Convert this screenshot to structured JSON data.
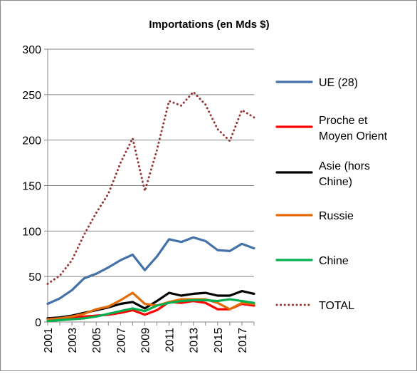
{
  "chart_data": {
    "type": "line",
    "title": "Importations  (en Mds $)",
    "xlabel": "",
    "ylabel": "",
    "ylim": [
      0,
      300
    ],
    "yticks": [
      "0",
      "50",
      "100",
      "150",
      "200",
      "250",
      "300"
    ],
    "x": [
      2001,
      2002,
      2003,
      2004,
      2005,
      2006,
      2007,
      2008,
      2009,
      2010,
      2011,
      2012,
      2013,
      2014,
      2015,
      2016,
      2017,
      2018
    ],
    "xtick_labels": [
      "2001",
      "2003",
      "2005",
      "2007",
      "2009",
      "2011",
      "2013",
      "2015",
      "2017"
    ],
    "grid": "horizontal",
    "legend_position": "right",
    "series": [
      {
        "name": "UE (28)",
        "color": "#4472a8",
        "style": "solid",
        "values": [
          20,
          26,
          35,
          48,
          53,
          60,
          68,
          74,
          57,
          72,
          91,
          88,
          93,
          89,
          79,
          78,
          86,
          81
        ]
      },
      {
        "name": "Proche et Moyen Orient",
        "color": "#ff0000",
        "style": "solid",
        "values": [
          3,
          4,
          5,
          6,
          7,
          8,
          10,
          13,
          8,
          13,
          22,
          21,
          23,
          21,
          14,
          14,
          20,
          18
        ]
      },
      {
        "name": "Asie (hors Chine)",
        "color": "#000000",
        "style": "solid",
        "values": [
          4,
          5,
          7,
          10,
          13,
          16,
          20,
          22,
          15,
          23,
          32,
          29,
          31,
          32,
          29,
          29,
          34,
          31
        ]
      },
      {
        "name": "Russie",
        "color": "#e36c09",
        "style": "solid",
        "values": [
          3,
          4,
          6,
          9,
          14,
          17,
          24,
          32,
          20,
          18,
          22,
          25,
          25,
          25,
          21,
          14,
          21,
          20
        ]
      },
      {
        "name": "Chine",
        "color": "#00b050",
        "style": "solid",
        "values": [
          1,
          2,
          3,
          4,
          6,
          9,
          12,
          15,
          12,
          18,
          21,
          23,
          24,
          24,
          23,
          25,
          23,
          21
        ]
      },
      {
        "name": "TOTAL",
        "color": "#943634",
        "style": "dotted",
        "values": [
          42,
          51,
          68,
          96,
          120,
          141,
          175,
          202,
          144,
          189,
          243,
          238,
          253,
          239,
          212,
          199,
          233,
          225
        ]
      }
    ]
  }
}
